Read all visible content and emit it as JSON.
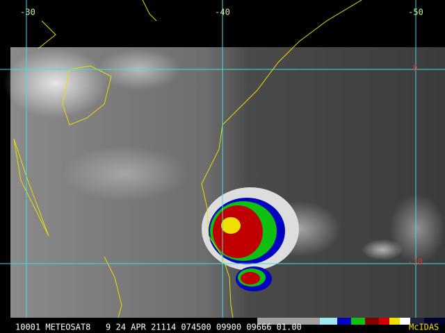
{
  "labels": {
    "top": [
      "-30",
      "-40",
      "-50"
    ],
    "right": [
      "0",
      "-10"
    ]
  },
  "footer": {
    "info": "10001 METEOSAT8   9 24 APR 21114 074500 09900 09666 01.00",
    "brand": "McIDAS"
  }
}
